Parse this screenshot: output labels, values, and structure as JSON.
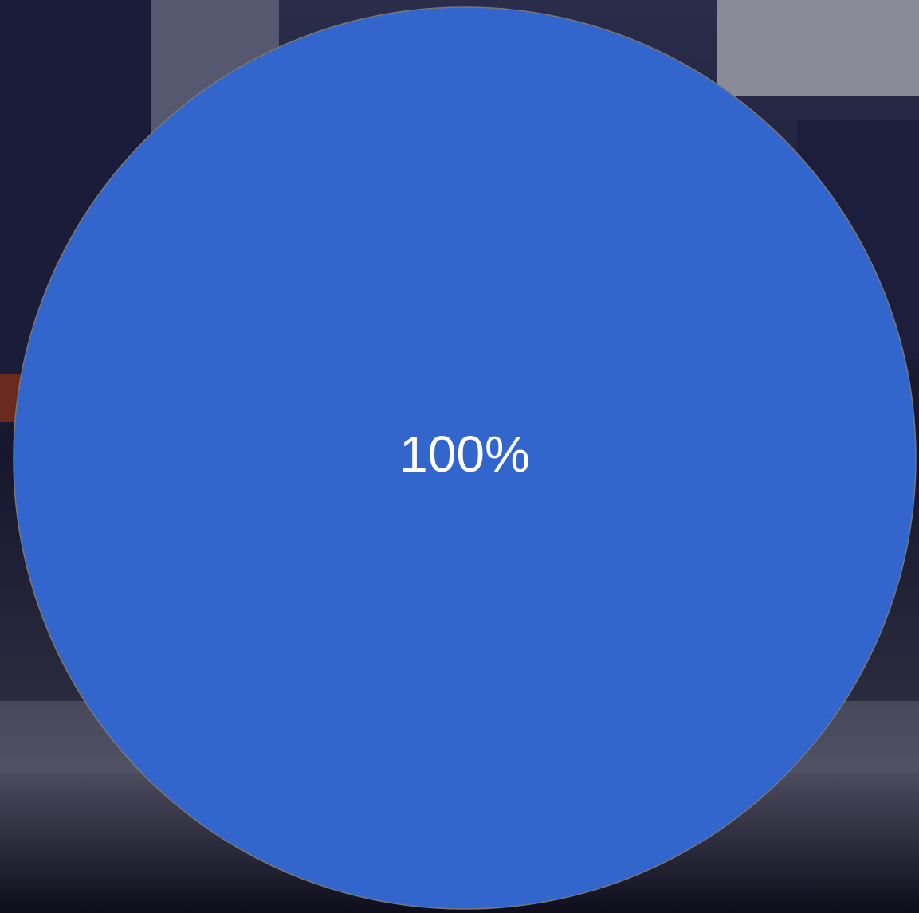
{
  "chart_data": {
    "type": "pie",
    "values": [
      100
    ],
    "value_labels": [
      "100%"
    ],
    "colors": [
      "#3366cc"
    ]
  }
}
